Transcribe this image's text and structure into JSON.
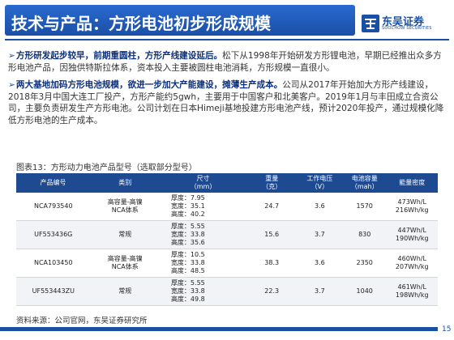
{
  "header": {
    "title": "技术与产品：方形电池初步形成规模"
  },
  "logo": {
    "name": "东吴证券",
    "sub": "SOOCHOW SECURITIES"
  },
  "paragraphs": [
    {
      "lead": "方形研发起步较早，前期重圆柱，方形产线建设延后。",
      "body": "松下从1998年开始研发方形锂电池，早期已经推出众多方形电池产品，因独供特斯拉体系，资本投入主要被圆柱电池消耗，方形规模一直很小。"
    },
    {
      "lead": "两大基地加码方形电池规模，欲进一步加大产能建设，摊薄生产成本。",
      "body": "公司从2017年开始加大方形产线建设，2018年3月中国大连工厂投产，方形产能约5gwh，主要用于中国客户和北美客户。2019年1月与丰田成立合资公司，主要负责研发生产方形电池。公司计划在日本Himeji基地投建方形电池产线，预计2020年投产，通过规模化降低方形电池的生产成本。"
    }
  ],
  "table": {
    "caption": "图表13：方形动力电池产品型号（选取部分型号）",
    "headers": {
      "model": "产品编号",
      "category": "类别",
      "size_line1": "尺寸",
      "size_line2": "（mm）",
      "weight_line1": "重量",
      "weight_line2": "（克）",
      "voltage_line1": "工作电压",
      "voltage_line2": "（V）",
      "capacity_line1": "电池容量",
      "capacity_line2": "（mah）",
      "density": "能量密度"
    },
    "rows": [
      {
        "model": "NCA793540",
        "category_line1": "高容量-高镍",
        "category_line2": "NCA体系",
        "thickness": "厚度：7.95",
        "width": "宽度：35.1",
        "height": "高度：40.2",
        "weight": "24.7",
        "voltage": "3.6",
        "capacity": "1570",
        "density_line1": "473Wh/L",
        "density_line2": "216Wh/kg"
      },
      {
        "model": "UF553436G",
        "category_line1": "常规",
        "category_line2": "",
        "thickness": "厚度：5.55",
        "width": "宽度：33.8",
        "height": "高度：35.6",
        "weight": "15.6",
        "voltage": "3.7",
        "capacity": "830",
        "density_line1": "447Wh/L",
        "density_line2": "190Wh/kg"
      },
      {
        "model": "NCA103450",
        "category_line1": "高容量-高镍",
        "category_line2": "NCA体系",
        "thickness": "厚度：10.5",
        "width": "宽度：33.8",
        "height": "高度：48.5",
        "weight": "38.3",
        "voltage": "3.6",
        "capacity": "2350",
        "density_line1": "460Wh/L",
        "density_line2": "207Wh/kg"
      },
      {
        "model": "UF553443ZU",
        "category_line1": "常规",
        "category_line2": "",
        "thickness": "厚度：5.55",
        "width": "宽度：33.8",
        "height": "高度：49.8",
        "weight": "22.3",
        "voltage": "3.7",
        "capacity": "1040",
        "density_line1": "461Wh/L",
        "density_line2": "198Wh/kg"
      }
    ]
  },
  "footer": {
    "source": "资料来源：公司官网，东吴证券研究所",
    "page": "15"
  },
  "colors": {
    "brand_blue": "#1a4fa6",
    "table_header": "#1e4a92",
    "lead_text": "#0d2f78"
  }
}
